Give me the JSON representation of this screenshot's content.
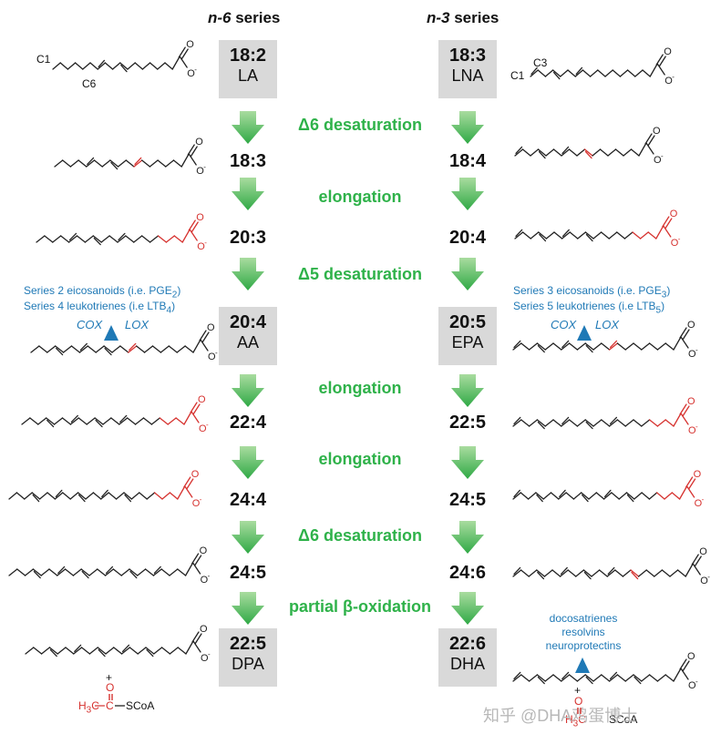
{
  "headers": {
    "n6_prefix": "n-6",
    "n6_suffix": " series",
    "n3_prefix": "n-3",
    "n3_suffix": " series"
  },
  "n6": {
    "la_num": "18:2",
    "la_abbr": "LA",
    "s2": "18:3",
    "s3": "20:3",
    "aa_num": "20:4",
    "aa_abbr": "AA",
    "s5": "22:4",
    "s6": "24:4",
    "s7": "24:5",
    "dpa_num": "22:5",
    "dpa_abbr": "DPA"
  },
  "n3": {
    "lna_num": "18:3",
    "lna_abbr": "LNA",
    "s2": "18:4",
    "s3": "20:4",
    "epa_num": "20:5",
    "epa_abbr": "EPA",
    "s5": "22:5",
    "s6": "24:5",
    "s7": "24:6",
    "dha_num": "22:6",
    "dha_abbr": "DHA"
  },
  "steps": {
    "d6_1": "Δ6 desaturation",
    "elong_1": "elongation",
    "d5": "Δ5 desaturation",
    "elong_2": "elongation",
    "elong_3": "elongation",
    "d6_2": "Δ6 desaturation",
    "beta": "partial β-oxidation"
  },
  "annotations": {
    "n6_eico_a": "Series 2 eicosanoids (i.e. PGE",
    "n6_eico_sub": "2",
    "n6_eico_b": ")",
    "n6_leuko_a": "Series 4 leukotrienes (i.e LTB",
    "n6_leuko_sub": "4",
    "n6_leuko_b": ")",
    "n3_eico_a": "Series 3 eicosanoids (i.e. PGE",
    "n3_eico_sub": "3",
    "n3_eico_b": ")",
    "n3_leuko_a": "Series 5 leukotrienes (i.e LTB",
    "n3_leuko_sub": "5",
    "n3_leuko_b": ")",
    "cox": "COX",
    "lox": "LOX",
    "dha_products": [
      "docosatrienes",
      "resolvins",
      "neuroprotectins"
    ]
  },
  "chem": {
    "c1": "C1",
    "c6": "C6",
    "c3": "C3",
    "o": "O",
    "o_minus": "O",
    "minus": "-",
    "c": "C",
    "plus": "+",
    "ch3": "H",
    "ch3_sub": "3",
    "ch3_c": "C",
    "scoa": "SCoA"
  },
  "watermark": "知乎 @DHA鸡蛋博士",
  "colors": {
    "green": "#2fb24a",
    "blue": "#1f79b6",
    "red": "#d6322f",
    "box": "#d9d9d9"
  }
}
